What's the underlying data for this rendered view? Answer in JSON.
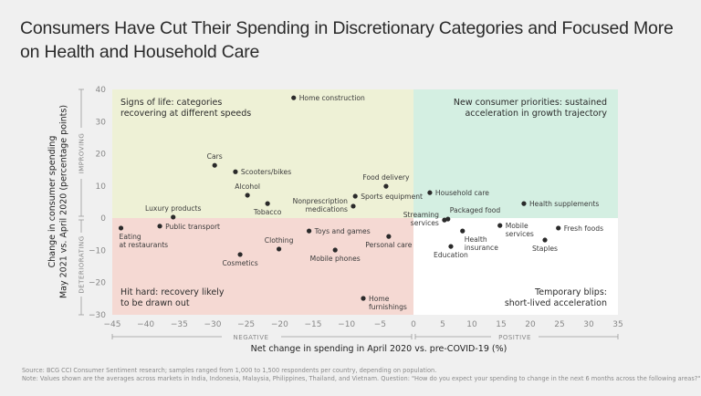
{
  "title": "Consumers Have Cut Their Spending in Discretionary Categories and Focused More on Health and Household Care",
  "footnotes": {
    "source": "Source: BCG CCI Consumer Sentiment research; samples ranged from 1,000 to 1,500 respondents per country, depending on population.",
    "note": "Note: Values shown are the averages across markets in India, Indonesia, Malaysia, Philippines, Thailand, and Vietnam. Question: \"How do you expect your spending to change in the next 6 months across the following areas?\""
  },
  "colors": {
    "top_left": "#eef1d6",
    "top_right": "#d4efe2",
    "bottom_left": "#f5d9d3",
    "bottom_right": "#ffffff",
    "point": "#2a2a2a",
    "axis_text": "#888888"
  },
  "chart_data": {
    "type": "scatter",
    "title": "Consumers Have Cut Their Spending in Discretionary Categories and Focused More on Health and Household Care",
    "xlabel": "Net change in spending in April 2020 vs. pre-COVID-19 (%)",
    "ylabel": [
      "Change in consumer spending",
      "May 2021 vs. April 2020 (percentage points)"
    ],
    "xlim": [
      -45,
      35
    ],
    "ylim": [
      -30,
      40
    ],
    "xticks": [
      -45,
      -40,
      -35,
      -30,
      -25,
      -20,
      -15,
      -10,
      -5,
      0,
      5,
      10,
      15,
      20,
      25,
      30,
      35
    ],
    "yticks": [
      -30,
      -20,
      -10,
      0,
      10,
      20,
      30,
      40
    ],
    "x_brackets": {
      "negative": "NEGATIVE",
      "positive": "POSITIVE"
    },
    "y_brackets": {
      "improving": "IMPROVING",
      "deteriorating": "DETERIORATING"
    },
    "grid": false,
    "quadrants": {
      "top_left": [
        "Signs of life: categories",
        "recovering at different speeds"
      ],
      "top_right": [
        "New consumer priorities: sustained",
        "acceleration in growth trajectory"
      ],
      "bottom_left": [
        "Hit hard: recovery likely",
        "to be drawn out"
      ],
      "bottom_right": [
        "Temporary blips:",
        "short-lived acceleration"
      ]
    },
    "points": [
      {
        "label": [
          "Home construction"
        ],
        "x": -17.9,
        "y": 37.4,
        "pos": "right"
      },
      {
        "label": [
          "Cars"
        ],
        "x": -29.7,
        "y": 16.4,
        "pos": "top"
      },
      {
        "label": [
          "Scooters/bikes"
        ],
        "x": -26.6,
        "y": 14.4,
        "pos": "right"
      },
      {
        "label": [
          "Alcohol"
        ],
        "x": -24.8,
        "y": 7.1,
        "pos": "top"
      },
      {
        "label": [
          "Tobacco"
        ],
        "x": -21.8,
        "y": 4.5,
        "pos": "bottom"
      },
      {
        "label": [
          "Luxury products"
        ],
        "x": -35.9,
        "y": 0.3,
        "pos": "top"
      },
      {
        "label": [
          "Public transport"
        ],
        "x": -37.9,
        "y": -2.5,
        "pos": "right"
      },
      {
        "label": [
          "Eating",
          "at restaurants"
        ],
        "x": -43.7,
        "y": -3.1,
        "pos": "bottom-left"
      },
      {
        "label": [
          "Food delivery"
        ],
        "x": -4.1,
        "y": 9.9,
        "pos": "top"
      },
      {
        "label": [
          "Sports equipment"
        ],
        "x": -8.7,
        "y": 6.8,
        "pos": "right"
      },
      {
        "label": [
          "Nonprescription",
          "medications"
        ],
        "x": -9.0,
        "y": 3.7,
        "pos": "left"
      },
      {
        "label": [
          "Toys and games"
        ],
        "x": -15.6,
        "y": -4.0,
        "pos": "right"
      },
      {
        "label": [
          "Personal care"
        ],
        "x": -3.7,
        "y": -5.7,
        "pos": "bottom"
      },
      {
        "label": [
          "Clothing"
        ],
        "x": -20.1,
        "y": -9.6,
        "pos": "top"
      },
      {
        "label": [
          "Mobile phones"
        ],
        "x": -11.7,
        "y": -9.9,
        "pos": "bottom"
      },
      {
        "label": [
          "Cosmetics"
        ],
        "x": -25.9,
        "y": -11.3,
        "pos": "bottom"
      },
      {
        "label": [
          "Home",
          "furnishings"
        ],
        "x": -7.5,
        "y": -24.9,
        "pos": "right"
      },
      {
        "label": [
          "Household care"
        ],
        "x": 2.8,
        "y": 7.9,
        "pos": "right"
      },
      {
        "label": [
          "Health supplements"
        ],
        "x": 18.9,
        "y": 4.5,
        "pos": "right"
      },
      {
        "label": [
          "Packaged food"
        ],
        "x": 5.9,
        "y": -0.3,
        "pos": "top-right"
      },
      {
        "label": [
          "Streaming",
          "services"
        ],
        "x": 5.3,
        "y": -0.6,
        "pos": "left"
      },
      {
        "label": [
          "Health",
          "insurance"
        ],
        "x": 8.4,
        "y": -4.0,
        "pos": "bottom-right"
      },
      {
        "label": [
          "Education"
        ],
        "x": 6.4,
        "y": -8.8,
        "pos": "bottom"
      },
      {
        "label": [
          "Mobile",
          "services"
        ],
        "x": 14.8,
        "y": -2.3,
        "pos": "right"
      },
      {
        "label": [
          "Staples"
        ],
        "x": 22.5,
        "y": -6.8,
        "pos": "bottom"
      },
      {
        "label": [
          "Fresh foods"
        ],
        "x": 24.8,
        "y": -3.1,
        "pos": "right"
      }
    ]
  }
}
